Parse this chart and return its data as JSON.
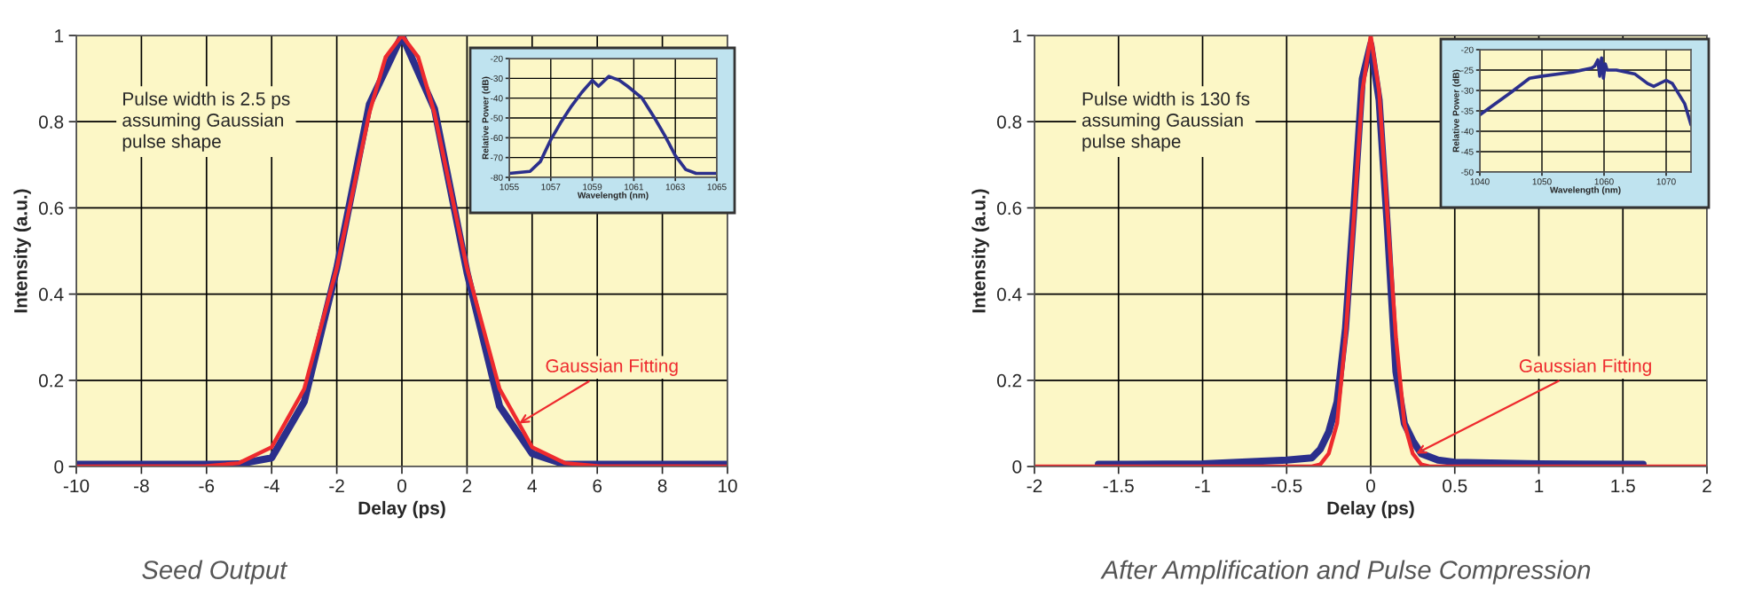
{
  "chart_data": [
    {
      "type": "line",
      "title": "Seed Output",
      "xlabel": "Delay (ps)",
      "ylabel": "Intensity (a.u.)",
      "xlim": [
        -10,
        10
      ],
      "ylim": [
        0,
        1
      ],
      "xticks": [
        -10,
        -8,
        -6,
        -4,
        -2,
        0,
        2,
        4,
        6,
        8,
        10
      ],
      "yticks": [
        0,
        0.2,
        0.4,
        0.6,
        0.8,
        1
      ],
      "grid": true,
      "annotations": [
        "Pulse width is 2.5 ps\nassuming Gaussian\npulse shape",
        {
          "text": "Gaussian Fitting",
          "x": 3.6,
          "y": 0.1
        }
      ],
      "series": [
        {
          "color": "#2b2f8c",
          "x": [
            -10,
            -6,
            -5,
            -4,
            -3,
            -2,
            -1,
            0,
            1,
            2,
            3,
            4,
            5,
            6,
            10
          ],
          "values": [
            0.005,
            0.005,
            0.006,
            0.02,
            0.15,
            0.46,
            0.84,
            1,
            0.83,
            0.45,
            0.14,
            0.03,
            0.005,
            0.005,
            0.005
          ]
        },
        {
          "color": "#ee2a2e",
          "x": [
            -10,
            -6,
            -5,
            -4,
            -3,
            -2,
            -1.5,
            -1,
            -0.5,
            0,
            0.5,
            1,
            1.5,
            2,
            3,
            4,
            5,
            6,
            10
          ],
          "values": [
            0,
            0.001,
            0.008,
            0.045,
            0.18,
            0.46,
            0.64,
            0.82,
            0.95,
            1,
            0.95,
            0.82,
            0.64,
            0.46,
            0.18,
            0.045,
            0.008,
            0.001,
            0
          ]
        }
      ]
    },
    {
      "type": "line",
      "xlabel": "Wavelength (nm)",
      "ylabel": "Relative Power (dB)",
      "xlim": [
        1055,
        1065
      ],
      "ylim": [
        -80,
        -20
      ],
      "xticks": [
        1055,
        1057,
        1059,
        1061,
        1063,
        1065
      ],
      "yticks": [
        -80,
        -70,
        -60,
        -50,
        -40,
        -30,
        -20
      ],
      "grid": true,
      "series": [
        {
          "color": "#2b2f8c",
          "x": [
            1055,
            1056,
            1056.5,
            1057,
            1057.5,
            1058,
            1058.5,
            1059,
            1059.3,
            1059.8,
            1060.3,
            1060.7,
            1061.4,
            1062,
            1062.5,
            1063,
            1063.5,
            1064,
            1065
          ],
          "values": [
            -78,
            -77,
            -72,
            -61,
            -52,
            -44,
            -37,
            -31,
            -34,
            -29,
            -31,
            -34,
            -40,
            -50,
            -59,
            -69,
            -76,
            -78,
            -78
          ]
        }
      ]
    },
    {
      "type": "line",
      "title": "After Amplification and Pulse Compression",
      "xlabel": "Delay (ps)",
      "ylabel": "Intensity (a.u.)",
      "xlim": [
        -2,
        2
      ],
      "ylim": [
        0,
        1
      ],
      "xticks": [
        -2,
        -1.5,
        -1,
        -0.5,
        0,
        0.5,
        1,
        1.5,
        2
      ],
      "yticks": [
        0,
        0.2,
        0.4,
        0.6,
        0.8,
        1
      ],
      "grid": true,
      "annotations": [
        "Pulse width is 130 fs\nassuming Gaussian\npulse shape",
        {
          "text": "Gaussian Fitting",
          "x": 0.27,
          "y": 0.03
        }
      ],
      "series": [
        {
          "color": "#2b2f8c",
          "x": [
            -1.62,
            -1,
            -0.5,
            -0.35,
            -0.3,
            -0.25,
            -0.2,
            -0.15,
            -0.1,
            -0.05,
            0,
            0.05,
            0.1,
            0.15,
            0.2,
            0.25,
            0.3,
            0.4,
            0.5,
            1,
            1.62
          ],
          "values": [
            0.005,
            0.006,
            0.015,
            0.02,
            0.04,
            0.08,
            0.15,
            0.32,
            0.6,
            0.9,
            0.98,
            0.85,
            0.55,
            0.22,
            0.1,
            0.06,
            0.03,
            0.015,
            0.01,
            0.006,
            0.005
          ]
        },
        {
          "color": "#ee2a2e",
          "x": [
            -2,
            -0.35,
            -0.3,
            -0.25,
            -0.2,
            -0.15,
            -0.1,
            -0.05,
            0,
            0.05,
            0.1,
            0.15,
            0.2,
            0.25,
            0.3,
            0.35,
            2
          ],
          "values": [
            0,
            0,
            0.005,
            0.03,
            0.1,
            0.3,
            0.58,
            0.87,
            1,
            0.87,
            0.58,
            0.3,
            0.1,
            0.03,
            0.005,
            0,
            0
          ]
        }
      ]
    },
    {
      "type": "line",
      "xlabel": "Wavelength (nm)",
      "ylabel": "Relative Power (dB)",
      "xlim": [
        1040,
        1074
      ],
      "ylim": [
        -50,
        -20
      ],
      "xticks": [
        1040,
        1050,
        1060,
        1070
      ],
      "yticks": [
        -50,
        -45,
        -40,
        -35,
        -30,
        -25,
        -20
      ],
      "grid": true,
      "series": [
        {
          "color": "#2b2f8c",
          "x": [
            1040,
            1045,
            1048,
            1050,
            1055,
            1058,
            1058.5,
            1059,
            1059.3,
            1059.6,
            1059.9,
            1060.2,
            1060.5,
            1062,
            1065,
            1067,
            1068,
            1070,
            1071,
            1073,
            1074
          ],
          "values": [
            -36,
            -30.5,
            -27,
            -26.5,
            -25.5,
            -24.5,
            -24,
            -22.5,
            -26.5,
            -22,
            -27,
            -23.5,
            -25,
            -25,
            -26,
            -28.3,
            -29,
            -27.5,
            -28.3,
            -33.3,
            -38.4
          ]
        }
      ]
    }
  ]
}
